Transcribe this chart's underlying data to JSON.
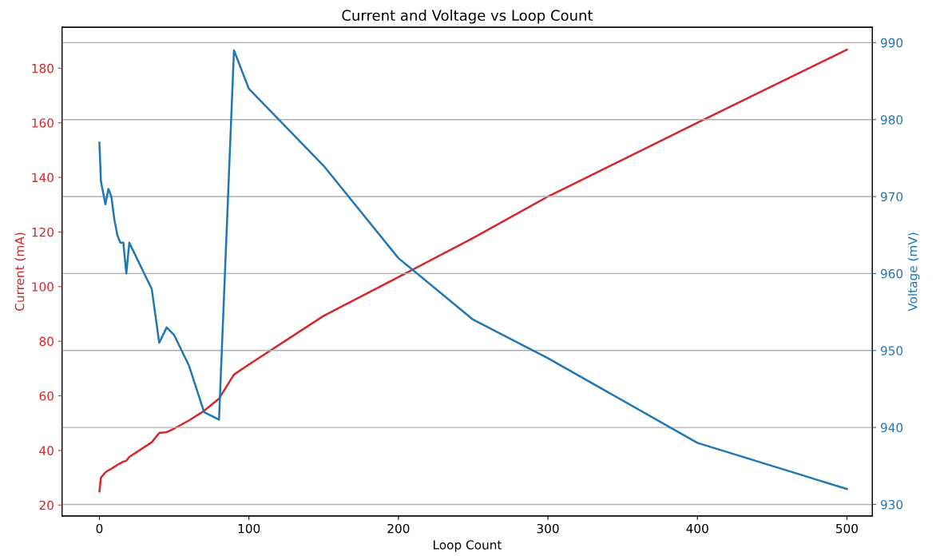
{
  "chart_data": {
    "type": "line",
    "title": "Current and Voltage vs Loop Count",
    "xlabel": "Loop Count",
    "ylabel": "Current (mA)",
    "y2label": "Voltage (mV)",
    "x": [
      0,
      1,
      4,
      6,
      8,
      10,
      12,
      14,
      16,
      18,
      20,
      35,
      40,
      45,
      50,
      60,
      70,
      80,
      90,
      100,
      150,
      200,
      250,
      300,
      400,
      500
    ],
    "series": [
      {
        "color": "#d62728",
        "values": [
          25,
          30,
          32,
          32.7,
          33.3,
          34,
          34.7,
          35.3,
          35.9,
          36.2,
          37.6,
          43,
          46.4,
          46.7,
          48,
          51,
          54.5,
          59,
          67.8,
          71.5,
          89.3,
          103.5,
          117.8,
          133,
          160,
          186.8
        ]
      },
      {
        "color": "#1f77b4",
        "axis": "y2",
        "values": [
          977,
          972,
          969,
          971,
          970,
          967,
          965,
          964,
          964,
          960,
          964,
          958,
          951,
          953,
          952,
          948,
          942,
          941,
          989,
          984,
          974,
          962,
          954,
          949,
          938,
          932
        ]
      }
    ],
    "xlim": [
      -25,
      517
    ],
    "xticks": [
      0,
      100,
      200,
      300,
      400,
      500
    ],
    "ylim": [
      16,
      195
    ],
    "yticks": [
      20,
      40,
      60,
      80,
      100,
      120,
      140,
      160,
      180
    ],
    "y2lim": [
      928.5,
      992
    ],
    "y2ticks": [
      930,
      940,
      950,
      960,
      970,
      980,
      990
    ],
    "grid": "y2"
  }
}
